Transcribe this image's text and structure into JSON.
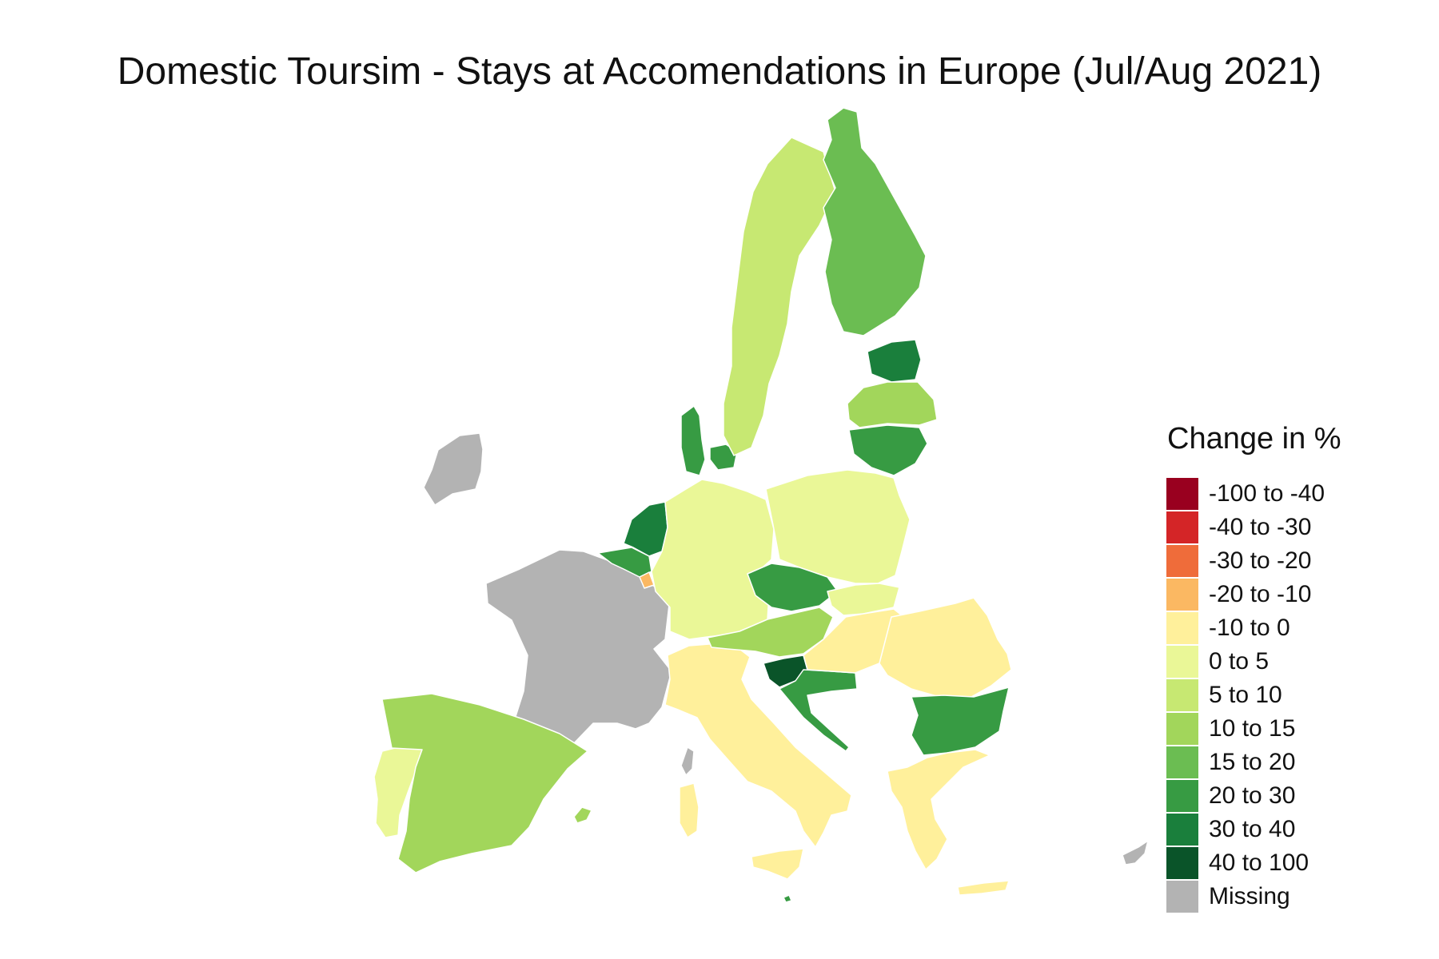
{
  "title": "Domestic Toursim - Stays at Accomendations in Europe (Jul/Aug 2021)",
  "legend": {
    "title": "Change in %",
    "items": [
      {
        "label": "-100 to -40",
        "color": "#99001f"
      },
      {
        "label": "-40 to -30",
        "color": "#d42527"
      },
      {
        "label": "-30 to -20",
        "color": "#ef6c3a"
      },
      {
        "label": "-20 to -10",
        "color": "#fbb862"
      },
      {
        "label": "-10 to 0",
        "color": "#fff09b"
      },
      {
        "label": "0 to 5",
        "color": "#eaf797"
      },
      {
        "label": "5 to 10",
        "color": "#c7e872"
      },
      {
        "label": "10 to 15",
        "color": "#a2d65b"
      },
      {
        "label": "15 to 20",
        "color": "#6bbd52"
      },
      {
        "label": "20 to 30",
        "color": "#379b43"
      },
      {
        "label": "30 to 40",
        "color": "#1a7f3c"
      },
      {
        "label": "40 to 100",
        "color": "#0a5429"
      },
      {
        "label": "Missing",
        "color": "#b3b3b3"
      }
    ]
  },
  "countries": [
    {
      "name": "Ireland",
      "class": "Missing"
    },
    {
      "name": "France",
      "class": "Missing"
    },
    {
      "name": "Cyprus",
      "class": "Missing"
    },
    {
      "name": "Corsica",
      "class": "Missing"
    },
    {
      "name": "Portugal",
      "class": "0 to 5"
    },
    {
      "name": "Spain",
      "class": "10 to 15"
    },
    {
      "name": "Balearic Islands",
      "class": "10 to 15"
    },
    {
      "name": "Italy",
      "class": "-10 to 0"
    },
    {
      "name": "Sardinia",
      "class": "-10 to 0"
    },
    {
      "name": "Sicily",
      "class": "-10 to 0"
    },
    {
      "name": "Netherlands",
      "class": "30 to 40"
    },
    {
      "name": "Belgium",
      "class": "20 to 30"
    },
    {
      "name": "Luxembourg",
      "class": "-20 to -10"
    },
    {
      "name": "Germany",
      "class": "0 to 5"
    },
    {
      "name": "Denmark Jutland",
      "class": "20 to 30"
    },
    {
      "name": "Denmark Zealand",
      "class": "20 to 30"
    },
    {
      "name": "Sweden",
      "class": "5 to 10"
    },
    {
      "name": "Finland",
      "class": "15 to 20"
    },
    {
      "name": "Estonia",
      "class": "30 to 40"
    },
    {
      "name": "Latvia",
      "class": "10 to 15"
    },
    {
      "name": "Lithuania",
      "class": "20 to 30"
    },
    {
      "name": "Poland",
      "class": "0 to 5"
    },
    {
      "name": "Czechia",
      "class": "20 to 30"
    },
    {
      "name": "Slovakia",
      "class": "0 to 5"
    },
    {
      "name": "Austria",
      "class": "10 to 15"
    },
    {
      "name": "Slovenia",
      "class": "40 to 100"
    },
    {
      "name": "Croatia",
      "class": "20 to 30"
    },
    {
      "name": "Hungary",
      "class": "-10 to 0"
    },
    {
      "name": "Romania",
      "class": "-10 to 0"
    },
    {
      "name": "Bulgaria",
      "class": "20 to 30"
    },
    {
      "name": "Greece",
      "class": "-10 to 0"
    },
    {
      "name": "Crete",
      "class": "-10 to 0"
    },
    {
      "name": "Malta",
      "class": "20 to 30"
    }
  ]
}
